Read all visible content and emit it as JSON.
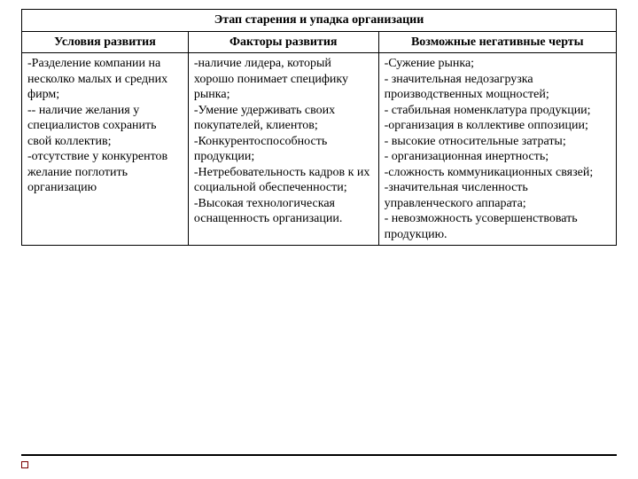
{
  "title": "Этап старения и упадка организации",
  "headers": {
    "col1": "Условия развития",
    "col2": "Факторы развития",
    "col3": "Возможные негативные черты"
  },
  "cells": {
    "col1": "-Разделение компании на несколко малых и средних фирм;\n-- наличие желания у специалистов сохранить свой коллектив;\n-отсутствие у конкурентов желание поглотить организацию",
    "col2": "-наличие лидера, который хорошо понимает специфику рынка;\n-Умение удерживать своих покупателей, клиентов;\n-Конкурентоспособность продукции;\n-Нетребовательность кадров к их социальной обеспеченности;\n-Высокая технологическая оснащенность организации.",
    "col3": "-Сужение рынка;\n- значительная недозагрузка производственных мощностей;\n- стабильная номенклатура продукции;\n-организация в коллективе оппозиции;\n- высокие относительные затраты;\n- организационная инертность;\n-сложность коммуникационных связей;\n-значительная численность управленческого аппарата;\n- невозможность усовершенствовать продукцию."
  }
}
